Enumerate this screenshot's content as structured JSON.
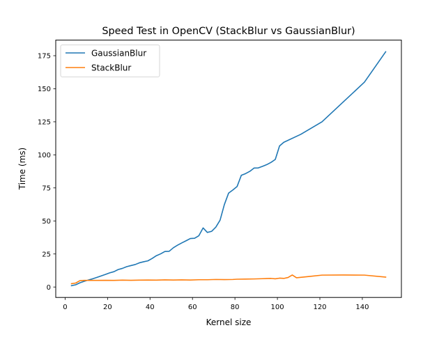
{
  "chart_data": {
    "type": "line",
    "title": "Speed Test in OpenCV (StackBlur vs GaussianBlur)",
    "xlabel": "Kernel size",
    "ylabel": "Time (ms)",
    "xlim": [
      -4.4,
      158.4
    ],
    "ylim": [
      -7.9,
      186.8
    ],
    "xticks": [
      0,
      20,
      40,
      60,
      80,
      100,
      120,
      140
    ],
    "yticks": [
      0,
      25,
      50,
      75,
      100,
      125,
      150,
      175
    ],
    "grid": false,
    "legend_position": "upper left",
    "series": [
      {
        "name": "GaussianBlur",
        "color": "#1f77b4",
        "x": [
          3,
          5,
          7,
          9,
          11,
          13,
          15,
          17,
          19,
          21,
          23,
          25,
          27,
          29,
          31,
          33,
          35,
          37,
          39,
          41,
          43,
          45,
          47,
          49,
          51,
          53,
          55,
          57,
          59,
          61,
          63,
          65,
          67,
          69,
          71,
          73,
          75,
          77,
          79,
          81,
          83,
          85,
          87,
          89,
          91,
          93,
          95,
          97,
          99,
          101,
          103,
          111,
          121,
          131,
          141,
          151
        ],
        "y": [
          1,
          1.7,
          3.2,
          4.3,
          5.3,
          6.2,
          7.3,
          8.4,
          9.5,
          10.7,
          11.6,
          13.2,
          14.1,
          15.4,
          16.2,
          17,
          18.3,
          19.1,
          19.8,
          21.6,
          23.7,
          25.1,
          26.9,
          27,
          29.7,
          31.7,
          33.4,
          35,
          36.7,
          36.9,
          38.8,
          44.7,
          41.3,
          42.1,
          45.3,
          50.6,
          62.3,
          71,
          73.4,
          76,
          84.5,
          85.8,
          87.5,
          90,
          90.1,
          91.3,
          92.6,
          94.3,
          96.5,
          106.7,
          109.5,
          115.5,
          125,
          140,
          155,
          178
        ]
      },
      {
        "name": "StackBlur",
        "color": "#ff7f0e",
        "x": [
          3,
          5,
          7,
          9,
          11,
          15,
          19,
          23,
          27,
          31,
          35,
          39,
          43,
          47,
          51,
          55,
          59,
          63,
          67,
          71,
          75,
          79,
          81,
          85,
          89,
          93,
          97,
          99,
          101,
          103,
          105,
          107,
          109,
          111,
          115,
          121,
          131,
          141,
          151
        ],
        "y": [
          2.5,
          3,
          4.8,
          5,
          5,
          5,
          5.1,
          5,
          5.2,
          5.1,
          5.2,
          5.3,
          5.2,
          5.4,
          5.3,
          5.4,
          5.3,
          5.5,
          5.5,
          5.7,
          5.6,
          5.7,
          5.9,
          6,
          6.1,
          6.3,
          6.5,
          6.2,
          6.7,
          6.5,
          7.2,
          9.1,
          7,
          7.3,
          8,
          9,
          9.1,
          9,
          7.5
        ]
      }
    ]
  }
}
